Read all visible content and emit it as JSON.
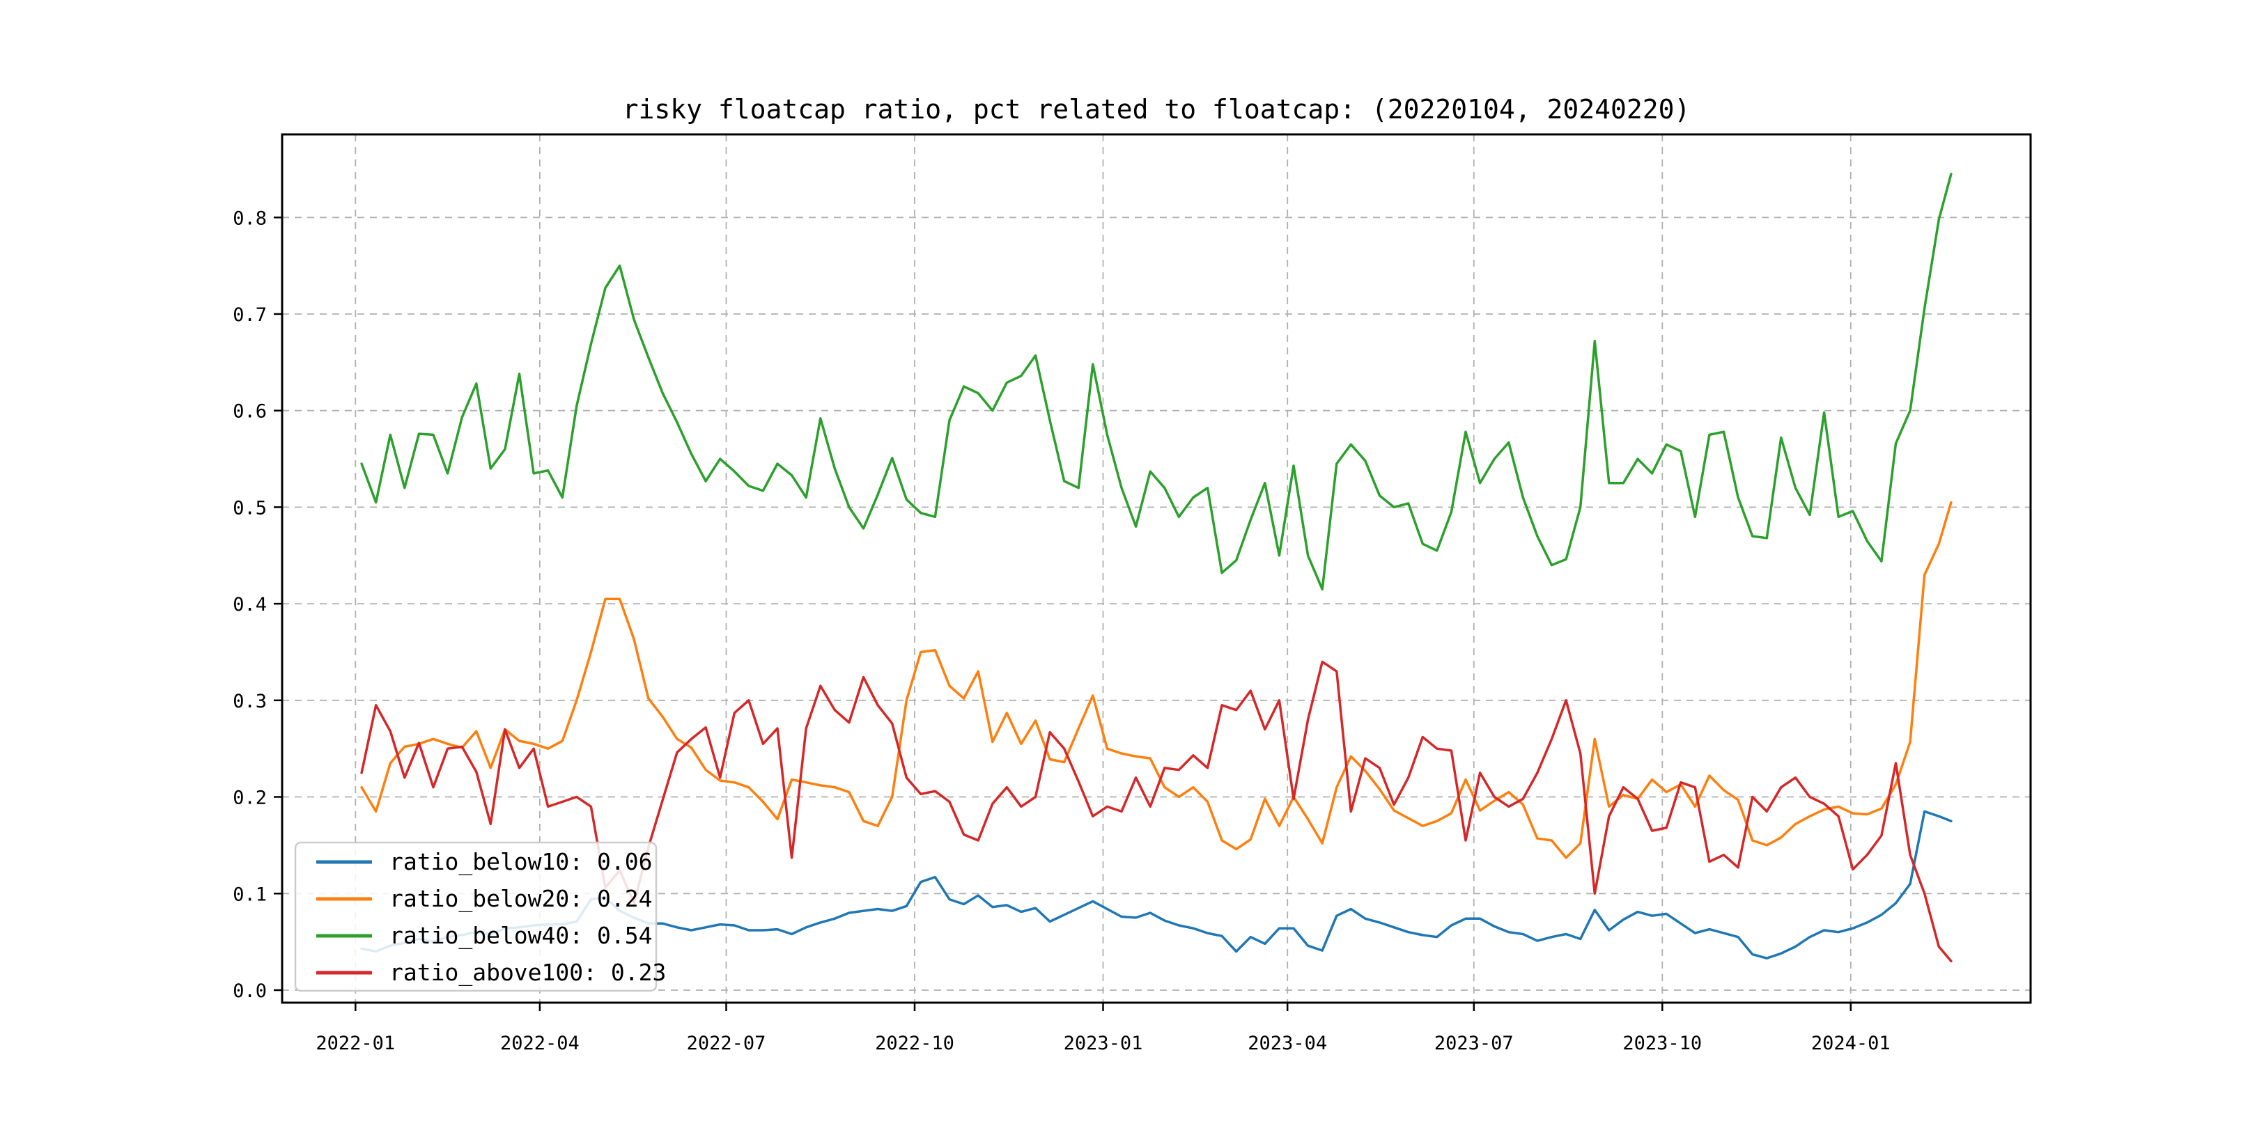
{
  "title": "risky floatcap ratio, pct related to floatcap: (20220104, 20240220)",
  "chart_data": {
    "type": "line",
    "title": "risky floatcap ratio, pct related to floatcap: (20220104, 20240220)",
    "xlabel": "",
    "ylabel": "",
    "x_start_date": "2022-01-04",
    "x_end_date": "2024-02-20",
    "x_step_days": 7,
    "x_total_days": 776,
    "xlim_day_offsets": [
      -38.8,
      814.8
    ],
    "ylim": [
      -0.013,
      0.886
    ],
    "grid": "dashed",
    "grid_color": "#b0b0b0",
    "legend_position": "lower-left",
    "x_tick_labels": [
      "2022-01",
      "2022-04",
      "2022-07",
      "2022-10",
      "2023-01",
      "2023-04",
      "2023-07",
      "2023-10",
      "2024-01"
    ],
    "x_tick_day_offsets": [
      -3,
      87,
      178,
      270,
      362,
      452,
      543,
      635,
      727
    ],
    "y_tick_labels": [
      "0.0",
      "0.1",
      "0.2",
      "0.3",
      "0.4",
      "0.5",
      "0.6",
      "0.7",
      "0.8"
    ],
    "y_tick_values": [
      0.0,
      0.1,
      0.2,
      0.3,
      0.4,
      0.5,
      0.6,
      0.7,
      0.8
    ],
    "series": [
      {
        "name": "ratio_below10",
        "legend_label": "ratio_below10: 0.06",
        "color": "#1f77b4",
        "values": [
          0.043,
          0.04,
          0.046,
          0.049,
          0.053,
          0.05,
          0.055,
          0.057,
          0.06,
          0.058,
          0.064,
          0.065,
          0.067,
          0.068,
          0.068,
          0.071,
          0.094,
          0.096,
          0.082,
          0.075,
          0.069,
          0.069,
          0.065,
          0.062,
          0.065,
          0.068,
          0.067,
          0.062,
          0.062,
          0.063,
          0.058,
          0.065,
          0.07,
          0.074,
          0.08,
          0.082,
          0.084,
          0.082,
          0.087,
          0.112,
          0.117,
          0.094,
          0.089,
          0.098,
          0.086,
          0.088,
          0.081,
          0.085,
          0.071,
          0.078,
          0.085,
          0.092,
          0.084,
          0.076,
          0.075,
          0.08,
          0.072,
          0.067,
          0.064,
          0.059,
          0.056,
          0.04,
          0.055,
          0.048,
          0.064,
          0.064,
          0.046,
          0.041,
          0.077,
          0.084,
          0.074,
          0.07,
          0.065,
          0.06,
          0.057,
          0.055,
          0.067,
          0.074,
          0.074,
          0.066,
          0.06,
          0.058,
          0.051,
          0.055,
          0.058,
          0.053,
          0.083,
          0.062,
          0.073,
          0.081,
          0.077,
          0.079,
          0.069,
          0.059,
          0.063,
          0.059,
          0.055,
          0.037,
          0.033,
          0.038,
          0.045,
          0.055,
          0.062,
          0.06,
          0.064,
          0.07,
          0.078,
          0.09,
          0.11,
          0.185,
          0.18,
          0.175
        ]
      },
      {
        "name": "ratio_below20",
        "legend_label": "ratio_below20: 0.24",
        "color": "#ff7f0e",
        "values": [
          0.21,
          0.185,
          0.235,
          0.252,
          0.255,
          0.26,
          0.255,
          0.251,
          0.268,
          0.23,
          0.27,
          0.258,
          0.255,
          0.25,
          0.258,
          0.3,
          0.35,
          0.405,
          0.405,
          0.363,
          0.302,
          0.283,
          0.26,
          0.251,
          0.228,
          0.217,
          0.215,
          0.21,
          0.195,
          0.177,
          0.218,
          0.215,
          0.212,
          0.21,
          0.205,
          0.175,
          0.17,
          0.2,
          0.3,
          0.35,
          0.352,
          0.315,
          0.302,
          0.33,
          0.257,
          0.287,
          0.255,
          0.279,
          0.239,
          0.236,
          0.271,
          0.305,
          0.25,
          0.245,
          0.242,
          0.24,
          0.21,
          0.2,
          0.21,
          0.195,
          0.155,
          0.146,
          0.156,
          0.198,
          0.17,
          0.2,
          0.177,
          0.152,
          0.21,
          0.242,
          0.227,
          0.208,
          0.186,
          0.178,
          0.17,
          0.175,
          0.183,
          0.218,
          0.186,
          0.196,
          0.205,
          0.192,
          0.157,
          0.155,
          0.137,
          0.152,
          0.26,
          0.19,
          0.202,
          0.198,
          0.218,
          0.205,
          0.213,
          0.19,
          0.222,
          0.207,
          0.197,
          0.155,
          0.15,
          0.158,
          0.172,
          0.18,
          0.187,
          0.19,
          0.183,
          0.182,
          0.188,
          0.213,
          0.257,
          0.43,
          0.462,
          0.505
        ]
      },
      {
        "name": "ratio_below40",
        "legend_label": "ratio_below40: 0.54",
        "color": "#2ca02c",
        "values": [
          0.545,
          0.505,
          0.575,
          0.52,
          0.576,
          0.575,
          0.535,
          0.593,
          0.628,
          0.54,
          0.56,
          0.638,
          0.535,
          0.538,
          0.51,
          0.605,
          0.669,
          0.727,
          0.75,
          0.694,
          0.655,
          0.618,
          0.588,
          0.555,
          0.527,
          0.55,
          0.537,
          0.522,
          0.517,
          0.545,
          0.533,
          0.51,
          0.592,
          0.54,
          0.5,
          0.478,
          0.513,
          0.551,
          0.508,
          0.494,
          0.49,
          0.59,
          0.625,
          0.618,
          0.6,
          0.629,
          0.636,
          0.657,
          0.59,
          0.527,
          0.52,
          0.648,
          0.575,
          0.52,
          0.48,
          0.537,
          0.52,
          0.49,
          0.51,
          0.52,
          0.432,
          0.445,
          0.487,
          0.525,
          0.45,
          0.543,
          0.45,
          0.415,
          0.545,
          0.565,
          0.548,
          0.512,
          0.5,
          0.504,
          0.462,
          0.455,
          0.495,
          0.578,
          0.525,
          0.55,
          0.567,
          0.51,
          0.47,
          0.44,
          0.446,
          0.5,
          0.672,
          0.525,
          0.525,
          0.55,
          0.535,
          0.565,
          0.558,
          0.49,
          0.575,
          0.578,
          0.51,
          0.47,
          0.468,
          0.572,
          0.52,
          0.492,
          0.598,
          0.49,
          0.496,
          0.465,
          0.444,
          0.566,
          0.6,
          0.706,
          0.798,
          0.845
        ]
      },
      {
        "name": "ratio_above100",
        "legend_label": "ratio_above100: 0.23",
        "color": "#d62728",
        "values": [
          0.225,
          0.295,
          0.268,
          0.22,
          0.256,
          0.21,
          0.25,
          0.252,
          0.226,
          0.172,
          0.27,
          0.23,
          0.25,
          0.19,
          0.195,
          0.2,
          0.19,
          0.106,
          0.124,
          0.09,
          0.148,
          0.197,
          0.246,
          0.26,
          0.272,
          0.22,
          0.287,
          0.3,
          0.255,
          0.271,
          0.137,
          0.271,
          0.315,
          0.29,
          0.277,
          0.324,
          0.295,
          0.276,
          0.22,
          0.203,
          0.206,
          0.195,
          0.161,
          0.155,
          0.193,
          0.21,
          0.19,
          0.2,
          0.267,
          0.25,
          0.216,
          0.18,
          0.19,
          0.185,
          0.22,
          0.19,
          0.23,
          0.228,
          0.243,
          0.23,
          0.295,
          0.29,
          0.31,
          0.27,
          0.3,
          0.198,
          0.28,
          0.34,
          0.33,
          0.185,
          0.24,
          0.23,
          0.192,
          0.22,
          0.262,
          0.25,
          0.248,
          0.155,
          0.225,
          0.2,
          0.19,
          0.198,
          0.225,
          0.26,
          0.3,
          0.245,
          0.1,
          0.18,
          0.21,
          0.198,
          0.165,
          0.168,
          0.215,
          0.21,
          0.133,
          0.14,
          0.127,
          0.2,
          0.185,
          0.21,
          0.22,
          0.2,
          0.193,
          0.18,
          0.125,
          0.14,
          0.16,
          0.235,
          0.14,
          0.1,
          0.045,
          0.03
        ]
      }
    ]
  },
  "legend": {
    "items": [
      {
        "label": "ratio_below10: 0.06",
        "color": "#1f77b4"
      },
      {
        "label": "ratio_below20: 0.24",
        "color": "#ff7f0e"
      },
      {
        "label": "ratio_below40: 0.54",
        "color": "#2ca02c"
      },
      {
        "label": "ratio_above100: 0.23",
        "color": "#d62728"
      }
    ]
  },
  "style": {
    "background": "#ffffff",
    "spine_color": "#000000",
    "grid_color": "#b0b0b0",
    "legend_border_color": "#cccccc",
    "legend_fill": "#ffffff",
    "legend_fill_opacity": 0.85
  }
}
